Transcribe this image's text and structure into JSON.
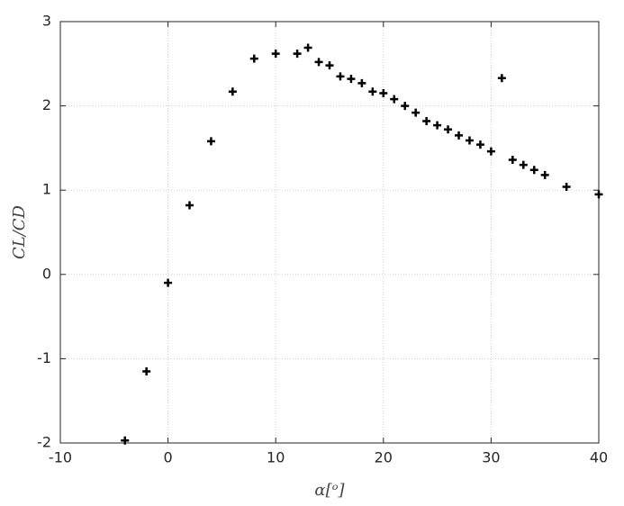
{
  "chart_data": {
    "type": "scatter",
    "x_label": "α[ᵒ]",
    "y_label": "CL/CD",
    "series": [
      {
        "color": "#000000",
        "x": [
          -4,
          -2,
          0,
          2,
          4,
          6,
          8,
          10,
          12,
          13,
          14,
          15,
          16,
          17,
          18,
          19,
          20,
          21,
          22,
          23,
          24,
          25,
          26,
          27,
          28,
          29,
          30,
          31,
          32,
          33,
          34,
          35,
          37,
          40
        ],
        "values": [
          -1.97,
          -1.15,
          -0.1,
          0.82,
          1.58,
          2.17,
          2.56,
          2.62,
          2.62,
          2.69,
          2.52,
          2.48,
          2.35,
          2.32,
          2.27,
          2.17,
          2.15,
          2.08,
          2.0,
          1.92,
          1.82,
          1.77,
          1.72,
          1.65,
          1.59,
          1.54,
          1.46,
          2.33,
          1.36,
          1.3,
          1.24,
          1.18,
          1.04,
          0.95
        ]
      }
    ],
    "xlim": [
      -10,
      40
    ],
    "xticks": [
      -10,
      0,
      10,
      20,
      30,
      40
    ],
    "ylim": [
      -2,
      3
    ],
    "yticks": [
      -2,
      -1,
      0,
      1,
      2,
      3
    ],
    "grid": true
  }
}
